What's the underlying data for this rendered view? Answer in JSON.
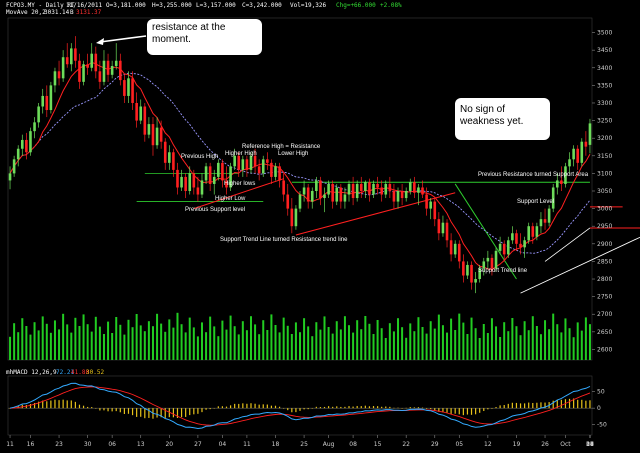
{
  "header": {
    "symbol": "FCPO3.MY - Daily RT",
    "date": "11/16/2011",
    "open": "O=3,181.000",
    "high": "H=3,255.000",
    "low": "L=3,157.000",
    "close": "C=3,242.000",
    "volume": "Vol=19,326",
    "change": "Chg=+66.000",
    "change_pct": "+2.08%",
    "mov_label": "MovAve 20,2",
    "mov_val1": "3031.14",
    "mov_sep": "B",
    "mov_val2": "3131.37"
  },
  "macd_label": {
    "name": "mhMACD 12,26,9",
    "v1": "72.21",
    "v2": "41.88",
    "v3": "30.52"
  },
  "colors": {
    "up": "#6ddc5a",
    "down": "#ff2020",
    "ma_fast": "#ff2020",
    "ma_slow": "#9a98ff",
    "volume": "#22cc22",
    "hline": "#2ecc2e",
    "axis_text": "#cfcfcf",
    "macd_line": "#33aaff",
    "macd_signal": "#ff2020",
    "macd_hist": "#e6c21a",
    "annot": "#ffffff"
  },
  "annotations": {
    "resistance_box": "resistance at the moment.",
    "weakness_box": "No sign of weakness yet.",
    "previous_high": "Previous High",
    "higher_high": "Higher High",
    "reference_high": "Reference High = Resistance",
    "lower_high": "Lower High",
    "higher_lows": "Higher lows",
    "higher_low": "Higher Low",
    "previous_support": "Previous Support level",
    "support_trend_resistance": "Support Trend Line turned Resistance trend line",
    "prev_resistance_support": "Previous Resistance turned Support Area",
    "support_level": "Support Level",
    "support_trend": "Support Trend line"
  },
  "chart_data": {
    "type": "candlestick",
    "price_axis": {
      "ticks": [
        2600,
        2650,
        2700,
        2750,
        2800,
        2850,
        2900,
        2950,
        3000,
        3050,
        3100,
        3150,
        3200,
        3250,
        3300,
        3350,
        3400,
        3450,
        3500
      ],
      "range": [
        2570,
        3530
      ]
    },
    "macd_axis": {
      "ticks": [
        50,
        0,
        -50
      ],
      "range": [
        -75,
        85
      ]
    },
    "x_ticks": [
      "11",
      "16",
      "23",
      "30",
      "06",
      "13",
      "20",
      "27",
      "04",
      "11",
      "18",
      "25",
      "Aug",
      "08",
      "15",
      "22",
      "29",
      "05",
      "12",
      "19",
      "26",
      "Oct",
      "10",
      "17",
      "24",
      "31",
      "08",
      "14"
    ],
    "x_tick_index": [
      0,
      5,
      12,
      19,
      25,
      32,
      39,
      46,
      52,
      58,
      65,
      72,
      78,
      84,
      90,
      97,
      104,
      110,
      117,
      124,
      131,
      136,
      144,
      151,
      158,
      165,
      172,
      178
    ],
    "ohlc": [
      [
        3080,
        3120,
        3055,
        3100
      ],
      [
        3100,
        3150,
        3090,
        3140
      ],
      [
        3140,
        3180,
        3120,
        3170
      ],
      [
        3170,
        3210,
        3150,
        3195
      ],
      [
        3195,
        3215,
        3140,
        3160
      ],
      [
        3160,
        3230,
        3150,
        3220
      ],
      [
        3220,
        3260,
        3200,
        3245
      ],
      [
        3245,
        3300,
        3230,
        3290
      ],
      [
        3290,
        3340,
        3270,
        3320
      ],
      [
        3320,
        3350,
        3260,
        3280
      ],
      [
        3280,
        3360,
        3270,
        3350
      ],
      [
        3350,
        3400,
        3330,
        3390
      ],
      [
        3390,
        3420,
        3350,
        3370
      ],
      [
        3370,
        3450,
        3360,
        3430
      ],
      [
        3430,
        3470,
        3400,
        3410
      ],
      [
        3410,
        3470,
        3390,
        3455
      ],
      [
        3455,
        3490,
        3400,
        3420
      ],
      [
        3420,
        3440,
        3340,
        3360
      ],
      [
        3360,
        3420,
        3350,
        3410
      ],
      [
        3410,
        3440,
        3380,
        3400
      ],
      [
        3400,
        3470,
        3390,
        3440
      ],
      [
        3440,
        3460,
        3370,
        3390
      ],
      [
        3390,
        3420,
        3340,
        3360
      ],
      [
        3360,
        3450,
        3350,
        3420
      ],
      [
        3420,
        3440,
        3360,
        3380
      ],
      [
        3380,
        3420,
        3370,
        3405
      ],
      [
        3405,
        3470,
        3395,
        3420
      ],
      [
        3420,
        3440,
        3350,
        3365
      ],
      [
        3365,
        3380,
        3300,
        3320
      ],
      [
        3320,
        3390,
        3300,
        3370
      ],
      [
        3370,
        3390,
        3280,
        3300
      ],
      [
        3300,
        3330,
        3230,
        3250
      ],
      [
        3250,
        3310,
        3240,
        3290
      ],
      [
        3290,
        3300,
        3190,
        3210
      ],
      [
        3210,
        3260,
        3200,
        3240
      ],
      [
        3240,
        3260,
        3150,
        3180
      ],
      [
        3180,
        3260,
        3170,
        3230
      ],
      [
        3230,
        3250,
        3170,
        3190
      ],
      [
        3190,
        3200,
        3110,
        3130
      ],
      [
        3130,
        3180,
        3110,
        3160
      ],
      [
        3160,
        3170,
        3090,
        3110
      ],
      [
        3110,
        3130,
        3040,
        3060
      ],
      [
        3060,
        3110,
        3050,
        3090
      ],
      [
        3090,
        3100,
        3030,
        3050
      ],
      [
        3050,
        3120,
        3040,
        3100
      ],
      [
        3100,
        3110,
        3040,
        3060
      ],
      [
        3060,
        3090,
        3020,
        3040
      ],
      [
        3040,
        3100,
        3030,
        3080
      ],
      [
        3080,
        3130,
        3070,
        3120
      ],
      [
        3120,
        3130,
        3050,
        3070
      ],
      [
        3070,
        3110,
        3040,
        3090
      ],
      [
        3090,
        3140,
        3080,
        3130
      ],
      [
        3130,
        3140,
        3060,
        3080
      ],
      [
        3080,
        3120,
        3040,
        3060
      ],
      [
        3060,
        3130,
        3050,
        3120
      ],
      [
        3120,
        3170,
        3110,
        3150
      ],
      [
        3150,
        3160,
        3090,
        3110
      ],
      [
        3110,
        3150,
        3090,
        3140
      ],
      [
        3140,
        3150,
        3090,
        3110
      ],
      [
        3110,
        3160,
        3100,
        3150
      ],
      [
        3150,
        3170,
        3100,
        3120
      ],
      [
        3120,
        3140,
        3080,
        3100
      ],
      [
        3100,
        3150,
        3090,
        3140
      ],
      [
        3140,
        3160,
        3110,
        3130
      ],
      [
        3130,
        3140,
        3070,
        3090
      ],
      [
        3090,
        3130,
        3080,
        3120
      ],
      [
        3120,
        3130,
        3060,
        3080
      ],
      [
        3080,
        3100,
        3020,
        3040
      ],
      [
        3040,
        3070,
        2980,
        3000
      ],
      [
        3000,
        3030,
        2930,
        2950
      ],
      [
        2950,
        3010,
        2940,
        3000
      ],
      [
        3000,
        3050,
        2990,
        3040
      ],
      [
        3040,
        3080,
        3020,
        3060
      ],
      [
        3060,
        3070,
        3000,
        3020
      ],
      [
        3020,
        3060,
        3000,
        3050
      ],
      [
        3050,
        3090,
        3030,
        3080
      ],
      [
        3080,
        3090,
        3010,
        3030
      ],
      [
        3030,
        3060,
        2990,
        3040
      ],
      [
        3040,
        3080,
        3030,
        3070
      ],
      [
        3070,
        3080,
        3000,
        3020
      ],
      [
        3020,
        3070,
        3010,
        3060
      ],
      [
        3060,
        3070,
        3000,
        3020
      ],
      [
        3020,
        3060,
        3000,
        3040
      ],
      [
        3040,
        3080,
        3020,
        3070
      ],
      [
        3070,
        3090,
        3010,
        3030
      ],
      [
        3030,
        3080,
        3020,
        3070
      ],
      [
        3070,
        3090,
        3030,
        3050
      ],
      [
        3050,
        3080,
        3030,
        3075
      ],
      [
        3075,
        3085,
        3020,
        3040
      ],
      [
        3040,
        3080,
        3030,
        3070
      ],
      [
        3070,
        3090,
        3040,
        3060
      ],
      [
        3060,
        3080,
        3020,
        3040
      ],
      [
        3040,
        3080,
        3030,
        3070
      ],
      [
        3070,
        3090,
        3030,
        3050
      ],
      [
        3050,
        3070,
        3000,
        3020
      ],
      [
        3020,
        3060,
        3000,
        3050
      ],
      [
        3050,
        3070,
        3010,
        3030
      ],
      [
        3030,
        3060,
        3020,
        3050
      ],
      [
        3050,
        3085,
        3040,
        3075
      ],
      [
        3075,
        3090,
        3030,
        3045
      ],
      [
        3045,
        3070,
        3010,
        3060
      ],
      [
        3060,
        3080,
        3030,
        3040
      ],
      [
        3040,
        3060,
        2980,
        3000
      ],
      [
        3000,
        3030,
        2970,
        3020
      ],
      [
        3020,
        3030,
        2950,
        2970
      ],
      [
        2970,
        2990,
        2910,
        2930
      ],
      [
        2930,
        2980,
        2920,
        2960
      ],
      [
        2960,
        2970,
        2890,
        2910
      ],
      [
        2910,
        2930,
        2850,
        2870
      ],
      [
        2870,
        2910,
        2860,
        2900
      ],
      [
        2900,
        2910,
        2830,
        2850
      ],
      [
        2850,
        2870,
        2790,
        2810
      ],
      [
        2810,
        2850,
        2800,
        2840
      ],
      [
        2840,
        2850,
        2770,
        2790
      ],
      [
        2790,
        2820,
        2760,
        2800
      ],
      [
        2800,
        2840,
        2790,
        2830
      ],
      [
        2830,
        2860,
        2810,
        2850
      ],
      [
        2850,
        2880,
        2830,
        2860
      ],
      [
        2860,
        2870,
        2810,
        2830
      ],
      [
        2830,
        2890,
        2820,
        2880
      ],
      [
        2880,
        2920,
        2870,
        2900
      ],
      [
        2900,
        2910,
        2850,
        2870
      ],
      [
        2870,
        2920,
        2860,
        2910
      ],
      [
        2910,
        2950,
        2900,
        2930
      ],
      [
        2930,
        2940,
        2880,
        2900
      ],
      [
        2900,
        2930,
        2870,
        2890
      ],
      [
        2890,
        2920,
        2860,
        2910
      ],
      [
        2910,
        2960,
        2900,
        2950
      ],
      [
        2950,
        2960,
        2900,
        2920
      ],
      [
        2920,
        2960,
        2910,
        2950
      ],
      [
        2950,
        2990,
        2930,
        2970
      ],
      [
        2970,
        3000,
        2940,
        2960
      ],
      [
        2960,
        3010,
        2950,
        3000
      ],
      [
        3000,
        3070,
        2990,
        3060
      ],
      [
        3060,
        3100,
        3040,
        3080
      ],
      [
        3080,
        3120,
        3050,
        3070
      ],
      [
        3070,
        3130,
        3060,
        3120
      ],
      [
        3120,
        3160,
        3100,
        3140
      ],
      [
        3140,
        3180,
        3120,
        3170
      ],
      [
        3170,
        3180,
        3110,
        3130
      ],
      [
        3130,
        3200,
        3120,
        3190
      ],
      [
        3190,
        3220,
        3150,
        3176
      ],
      [
        3181,
        3255,
        3157,
        3242
      ]
    ],
    "volume_axis_max": 100,
    "macd": {
      "hist_scale": 1.0
    }
  }
}
